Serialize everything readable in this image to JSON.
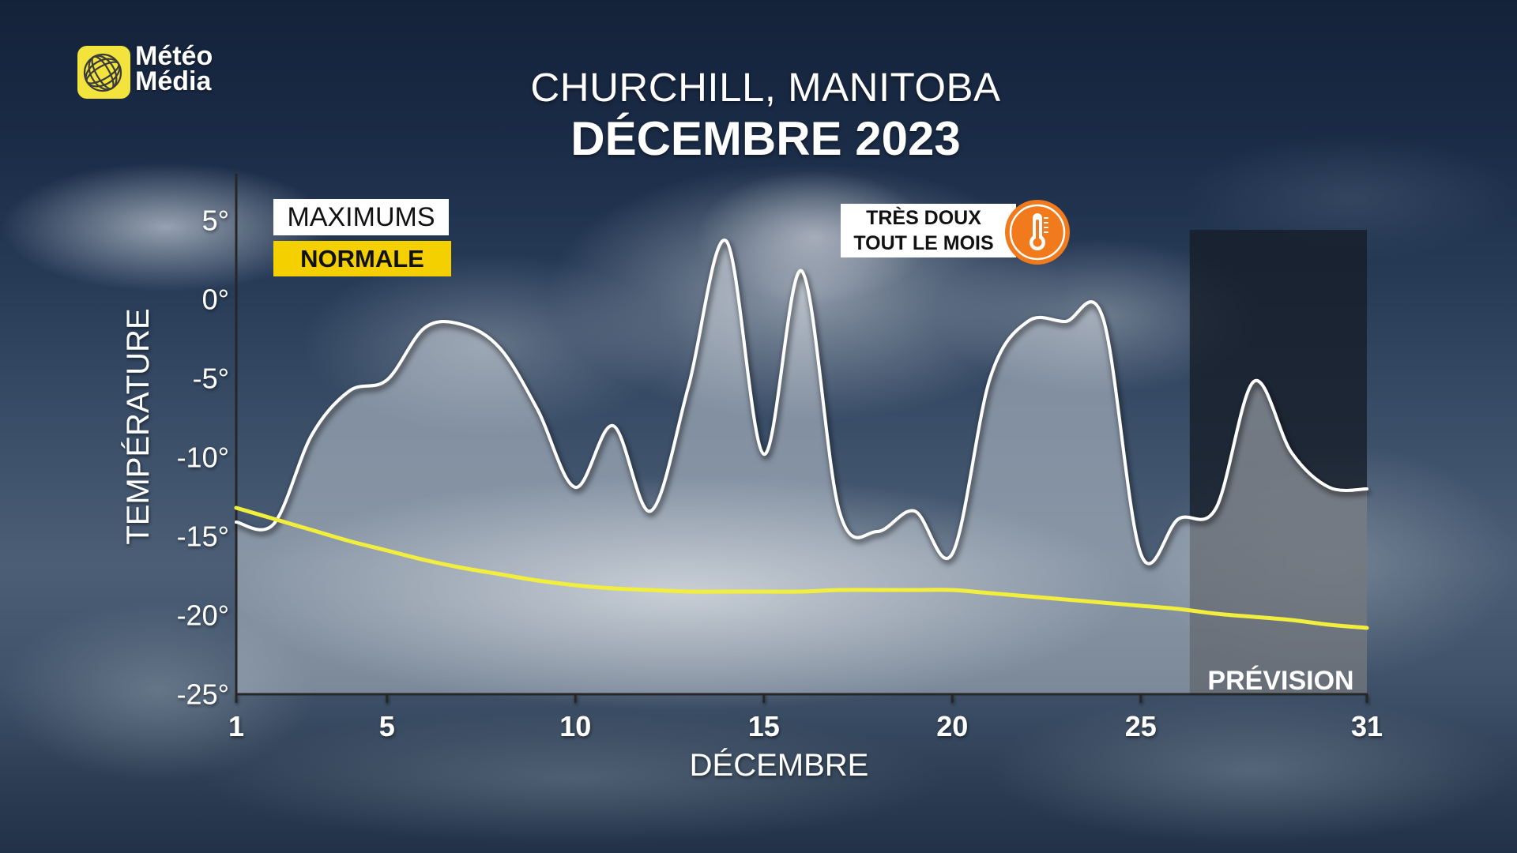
{
  "logo": {
    "line1": "Météo",
    "line2": "Média",
    "icon": "globe-icon",
    "color": "#f2e43c"
  },
  "badge": {
    "line1": "TRÈS DOUX",
    "line2": "TOUT LE MOIS",
    "icon": "thermometer-icon",
    "icon_color": "#f07a1c"
  },
  "chart_data": {
    "type": "line",
    "title": "CHURCHILL, MANITOBA",
    "subtitle": "DÉCEMBRE 2023",
    "xlabel": "DÉCEMBRE",
    "ylabel": "TEMPÉRATURE",
    "x": [
      1,
      2,
      3,
      4,
      5,
      6,
      7,
      8,
      9,
      10,
      11,
      12,
      13,
      14,
      15,
      16,
      17,
      18,
      19,
      20,
      21,
      22,
      23,
      24,
      25,
      26,
      27,
      28,
      29,
      30,
      31
    ],
    "xlim": [
      1,
      31
    ],
    "x_ticks": [
      1,
      5,
      10,
      15,
      20,
      25,
      31
    ],
    "ylim": [
      -25,
      5
    ],
    "y_ticks": [
      5,
      0,
      -5,
      -10,
      -15,
      -20,
      -25
    ],
    "y_tick_labels": [
      "5°",
      "0°",
      "-5°",
      "-10°",
      "-15°",
      "-20°",
      "-25°"
    ],
    "grid": false,
    "legend_position": "top-left",
    "series": [
      {
        "name": "MAXIMUMS",
        "color": "#ffffff",
        "legend_color": "#ffffff",
        "fill_below": true,
        "values": [
          -14.1,
          -14.2,
          -8.6,
          -5.8,
          -5.1,
          -1.8,
          -1.6,
          -3.1,
          -7.0,
          -11.9,
          -8.0,
          -13.4,
          -5.5,
          3.7,
          -9.8,
          1.8,
          -13.4,
          -14.7,
          -13.4,
          -16.1,
          -5.0,
          -1.4,
          -1.4,
          -1.2,
          -16.1,
          -13.9,
          -13.2,
          -5.2,
          -9.7,
          -11.9,
          -12.0
        ]
      },
      {
        "name": "NORMALE",
        "color": "#f2ee3e",
        "legend_color": "#f4d000",
        "values": [
          -13.2,
          -13.9,
          -14.6,
          -15.3,
          -15.9,
          -16.5,
          -17.0,
          -17.4,
          -17.8,
          -18.1,
          -18.3,
          -18.4,
          -18.5,
          -18.5,
          -18.5,
          -18.5,
          -18.4,
          -18.4,
          -18.4,
          -18.4,
          -18.6,
          -18.8,
          -19.0,
          -19.2,
          -19.4,
          -19.6,
          -19.9,
          -20.1,
          -20.3,
          -20.6,
          -20.8
        ]
      }
    ],
    "forecast": {
      "label": "PRÉVISION",
      "start": 26.3,
      "end": 31,
      "shade_color": "#161c26"
    }
  }
}
